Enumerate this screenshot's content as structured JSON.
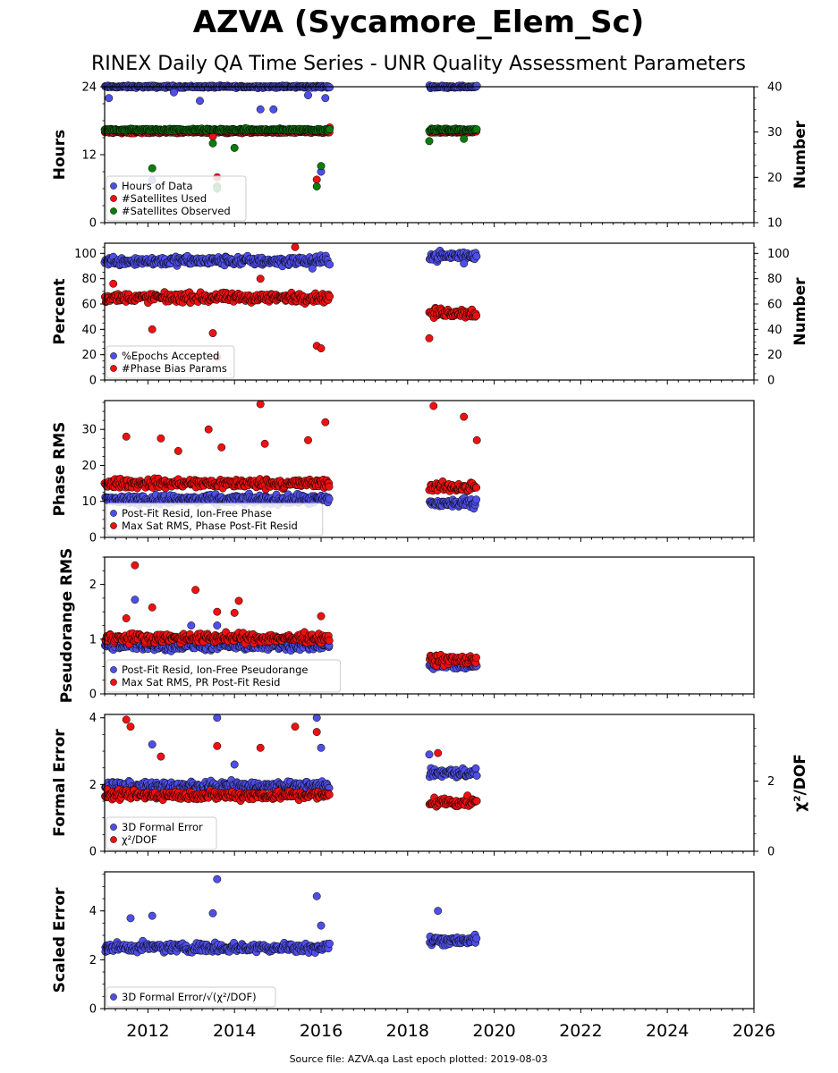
{
  "title": "AZVA (Sycamore_Elem_Sc)",
  "subtitle": "RINEX Daily QA Time Series - UNR Quality Assessment Parameters",
  "source": "Source file: AZVA.qa Last epoch plotted: 2019-08-03",
  "colors": {
    "blue": "#4f4fe6",
    "red": "#ee1111",
    "green": "#0a7d0a"
  },
  "chart_data": [
    {
      "type": "scatter",
      "id": "hours",
      "xlim": [
        2011.0,
        2026.0
      ],
      "xticks": [
        "2012",
        "2014",
        "2016",
        "2018",
        "2020",
        "2022",
        "2024",
        "2026"
      ],
      "ylabel": "Hours",
      "ylim": [
        0,
        24
      ],
      "yticks": [
        "0",
        "12",
        "24"
      ],
      "ylabel_right": "Number",
      "ylim_right": [
        10,
        40
      ],
      "yticks_right": [
        "10",
        "20",
        "30",
        "40"
      ],
      "legend": "bottom-left",
      "series": [
        {
          "name": "Hours of Data",
          "color": "blue",
          "axis": "left",
          "segments": [
            [
              2011.0,
              2016.2,
              24.0
            ],
            [
              2018.5,
              2019.6,
              24.0
            ]
          ],
          "outliers": [
            [
              2011.1,
              22.0
            ],
            [
              2012.6,
              23.0
            ],
            [
              2013.2,
              21.5
            ],
            [
              2014.6,
              20.0
            ],
            [
              2014.9,
              20.0
            ],
            [
              2015.7,
              22.5
            ],
            [
              2016.0,
              9.0
            ],
            [
              2016.1,
              22.0
            ],
            [
              2012.1,
              7.5
            ]
          ]
        },
        {
          "name": "#Satellites Used",
          "color": "red",
          "axis": "right",
          "segments": [
            [
              2011.0,
              2016.2,
              30.0
            ],
            [
              2018.5,
              2019.6,
              30.0
            ]
          ],
          "outliers": [
            [
              2013.5,
              29.0
            ],
            [
              2015.9,
              19.5
            ],
            [
              2016.2,
              31.0
            ],
            [
              2013.6,
              20.0
            ]
          ]
        },
        {
          "name": "#Satellites Observed",
          "color": "green",
          "axis": "right",
          "segments": [
            [
              2011.0,
              2016.2,
              30.5
            ],
            [
              2018.5,
              2019.6,
              30.5
            ]
          ],
          "outliers": [
            [
              2012.1,
              22.0
            ],
            [
              2013.5,
              27.5
            ],
            [
              2014.0,
              26.5
            ],
            [
              2015.9,
              18.0
            ],
            [
              2016.0,
              22.5
            ],
            [
              2018.5,
              28.0
            ],
            [
              2013.6,
              18.0
            ],
            [
              2013.6,
              17.5
            ],
            [
              2019.3,
              28.5
            ]
          ]
        }
      ]
    },
    {
      "type": "scatter",
      "id": "percent",
      "xlim": [
        2011.0,
        2026.0
      ],
      "ylabel": "Percent",
      "ylim": [
        0,
        108
      ],
      "yticks": [
        "0",
        "20",
        "40",
        "60",
        "80",
        "100"
      ],
      "ylabel_right": "Number",
      "ylim_right": [
        0,
        108
      ],
      "yticks_right": [
        "0",
        "20",
        "40",
        "60",
        "80",
        "100"
      ],
      "legend": "bottom-left",
      "series": [
        {
          "name": "%Epochs Accepted",
          "color": "blue",
          "axis": "left",
          "segments": [
            [
              2011.0,
              2016.2,
              94.0
            ],
            [
              2018.5,
              2019.6,
              98.0
            ]
          ],
          "outliers": [
            [
              2015.8,
              88.0
            ],
            [
              2019.3,
              92.0
            ]
          ]
        },
        {
          "name": "#Phase Bias Params",
          "color": "red",
          "axis": "right",
          "segments": [
            [
              2011.0,
              2016.2,
              65.0
            ],
            [
              2018.5,
              2019.6,
              53.0
            ]
          ],
          "outliers": [
            [
              2012.1,
              40.0
            ],
            [
              2013.5,
              37.0
            ],
            [
              2015.4,
              105.0
            ],
            [
              2015.9,
              27.0
            ],
            [
              2016.0,
              25.0
            ],
            [
              2018.5,
              33.0
            ],
            [
              2013.6,
              18.0
            ],
            [
              2011.2,
              76.0
            ],
            [
              2014.6,
              80.0
            ]
          ]
        }
      ]
    },
    {
      "type": "scatter",
      "id": "phase",
      "xlim": [
        2011.0,
        2026.0
      ],
      "ylabel": "Phase RMS",
      "ylim": [
        0,
        38
      ],
      "yticks": [
        "0",
        "10",
        "20",
        "30"
      ],
      "legend": "bottom-left",
      "series": [
        {
          "name": "Post-Fit Resid, Ion-Free Phase",
          "color": "blue",
          "axis": "left",
          "segments": [
            [
              2011.0,
              2016.2,
              10.5
            ],
            [
              2018.5,
              2019.6,
              9.5
            ]
          ],
          "outliers": []
        },
        {
          "name": "Max Sat RMS, Phase Post-Fit Resid",
          "color": "red",
          "axis": "left",
          "segments": [
            [
              2011.0,
              2016.2,
              15.0
            ],
            [
              2018.5,
              2019.6,
              14.0
            ]
          ],
          "outliers": [
            [
              2011.5,
              28.0
            ],
            [
              2012.3,
              27.5
            ],
            [
              2013.4,
              30.0
            ],
            [
              2014.6,
              37.0
            ],
            [
              2014.7,
              26.0
            ],
            [
              2015.7,
              27.0
            ],
            [
              2016.1,
              32.0
            ],
            [
              2018.6,
              36.5
            ],
            [
              2019.3,
              33.5
            ],
            [
              2019.6,
              27.0
            ],
            [
              2013.7,
              25.0
            ],
            [
              2012.7,
              24.0
            ]
          ]
        }
      ]
    },
    {
      "type": "scatter",
      "id": "pseudorange",
      "xlim": [
        2011.0,
        2026.0
      ],
      "ylabel": "Pseudorange RMS",
      "ylim": [
        0,
        2.5
      ],
      "yticks": [
        "0",
        "1",
        "2"
      ],
      "legend": "bottom-left",
      "series": [
        {
          "name": "Post-Fit Resid, Ion-Free Pseudorange",
          "color": "blue",
          "axis": "left",
          "segments": [
            [
              2011.0,
              2016.2,
              0.88
            ],
            [
              2018.5,
              2019.6,
              0.52
            ]
          ],
          "outliers": [
            [
              2011.7,
              1.72
            ],
            [
              2013.0,
              1.25
            ],
            [
              2013.6,
              1.25
            ]
          ]
        },
        {
          "name": "Max Sat RMS, PR Post-Fit Resid",
          "color": "red",
          "axis": "left",
          "segments": [
            [
              2011.0,
              2016.2,
              1.02
            ],
            [
              2018.5,
              2019.6,
              0.62
            ]
          ],
          "outliers": [
            [
              2011.7,
              2.35
            ],
            [
              2012.1,
              1.58
            ],
            [
              2013.1,
              1.9
            ],
            [
              2013.6,
              1.5
            ],
            [
              2014.0,
              1.48
            ],
            [
              2014.1,
              1.7
            ],
            [
              2011.5,
              1.38
            ],
            [
              2016.0,
              1.42
            ]
          ]
        }
      ]
    },
    {
      "type": "scatter",
      "id": "formal",
      "xlim": [
        2011.0,
        2026.0
      ],
      "ylabel": "Formal Error",
      "ylim": [
        0,
        4.1
      ],
      "yticks": [
        "0",
        "2",
        "4"
      ],
      "ylabel_right": "χ²/DOF",
      "ylim_right": [
        0,
        3.9
      ],
      "yticks_right": [
        "0",
        "2"
      ],
      "legend": "bottom-left",
      "series": [
        {
          "name": "3D Formal Error",
          "color": "blue",
          "axis": "left",
          "segments": [
            [
              2011.0,
              2016.2,
              1.95
            ],
            [
              2018.5,
              2019.6,
              2.35
            ]
          ],
          "outliers": [
            [
              2012.1,
              3.2
            ],
            [
              2013.6,
              4.0
            ],
            [
              2014.0,
              2.6
            ],
            [
              2015.9,
              4.0
            ],
            [
              2016.0,
              3.1
            ],
            [
              2018.5,
              2.9
            ]
          ]
        },
        {
          "name": "χ²/DOF",
          "color": "red",
          "axis": "right",
          "segments": [
            [
              2011.0,
              2016.2,
              1.6
            ],
            [
              2018.5,
              2019.6,
              1.4
            ]
          ],
          "outliers": [
            [
              2011.5,
              3.75
            ],
            [
              2011.6,
              3.55
            ],
            [
              2013.6,
              3.0
            ],
            [
              2014.6,
              2.95
            ],
            [
              2015.4,
              3.55
            ],
            [
              2015.9,
              3.4
            ],
            [
              2012.3,
              2.7
            ],
            [
              2018.7,
              2.8
            ]
          ]
        }
      ]
    },
    {
      "type": "scatter",
      "id": "scaled",
      "xlim": [
        2011.0,
        2026.0
      ],
      "ylabel": "Scaled Error",
      "ylim": [
        0,
        5.6
      ],
      "yticks": [
        "0",
        "2",
        "4"
      ],
      "legend": "bottom-left",
      "series": [
        {
          "name": "3D Formal Error/√(χ²/DOF)",
          "color": "blue",
          "axis": "left",
          "segments": [
            [
              2011.0,
              2016.2,
              2.5
            ],
            [
              2018.5,
              2019.6,
              2.8
            ]
          ],
          "outliers": [
            [
              2011.6,
              3.7
            ],
            [
              2012.1,
              3.8
            ],
            [
              2013.6,
              5.3
            ],
            [
              2013.5,
              3.9
            ],
            [
              2015.9,
              4.6
            ],
            [
              2016.0,
              3.4
            ],
            [
              2018.7,
              4.0
            ]
          ]
        }
      ]
    }
  ]
}
